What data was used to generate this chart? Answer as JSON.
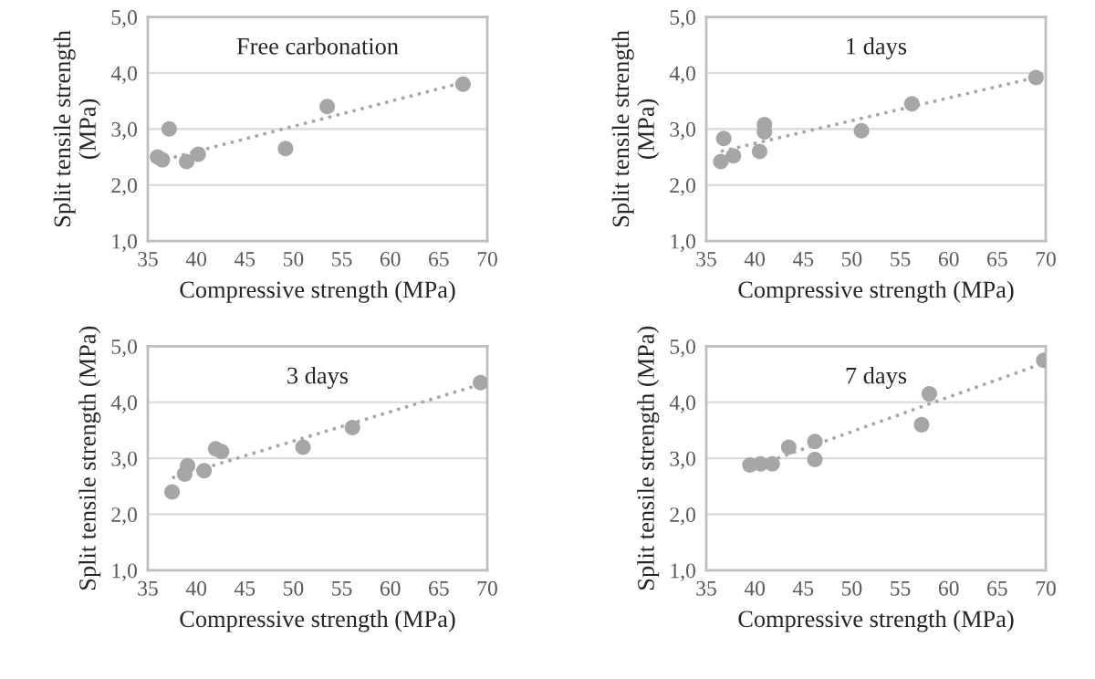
{
  "chart_data": [
    {
      "type": "scatter",
      "title": "Free carbonation",
      "xlabel": "Compressive strength (MPa)",
      "ylabel": "Split tensile strength (MPa)",
      "xlim": [
        35,
        70
      ],
      "ylim": [
        1,
        5
      ],
      "xticks": [
        35,
        40,
        45,
        50,
        55,
        60,
        65,
        70
      ],
      "yticks": [
        {
          "value": 1,
          "label": "1,0"
        },
        {
          "value": 2,
          "label": "2,0"
        },
        {
          "value": 3,
          "label": "3,0"
        },
        {
          "value": 4,
          "label": "4,0"
        },
        {
          "value": 5,
          "label": "5,0"
        }
      ],
      "grid": "y",
      "marker": "circle",
      "series": [
        {
          "color": "#a6a6a6",
          "x": [
            36,
            36.5,
            37.2,
            39,
            40.2,
            49.2,
            53.5,
            67.5
          ],
          "values": [
            2.5,
            2.45,
            3.0,
            2.42,
            2.55,
            2.65,
            3.4,
            3.8
          ]
        },
        {
          "type": "line",
          "marker": "none",
          "color": "#a6a6a6",
          "line_style": "dotted",
          "x": [
            36,
            67.5
          ],
          "values": [
            2.42,
            3.83
          ]
        }
      ]
    },
    {
      "type": "scatter",
      "title": "1 days",
      "xlabel": "Compressive strength (MPa)",
      "ylabel": "Split tensile strength (MPa)",
      "xlim": [
        35,
        70
      ],
      "ylim": [
        1,
        5
      ],
      "xticks": [
        35,
        40,
        45,
        50,
        55,
        60,
        65,
        70
      ],
      "yticks": [
        {
          "value": 1,
          "label": "1,0"
        },
        {
          "value": 2,
          "label": "2,0"
        },
        {
          "value": 3,
          "label": "3,0"
        },
        {
          "value": 4,
          "label": "4,0"
        },
        {
          "value": 5,
          "label": "5,0"
        }
      ],
      "grid": "y",
      "marker": "circle",
      "series": [
        {
          "color": "#a6a6a6",
          "x": [
            36.5,
            36.8,
            37.8,
            40.5,
            41,
            41,
            51,
            56.2,
            69
          ],
          "values": [
            2.42,
            2.83,
            2.52,
            2.6,
            3.08,
            2.95,
            2.97,
            3.45,
            3.92
          ]
        },
        {
          "type": "line",
          "marker": "none",
          "color": "#a6a6a6",
          "line_style": "dotted",
          "x": [
            36.5,
            69
          ],
          "values": [
            2.6,
            3.92
          ]
        }
      ]
    },
    {
      "type": "scatter",
      "title": "3 days",
      "xlabel": "Compressive strength (MPa)",
      "ylabel": "Split tensile strength (MPa)",
      "xlim": [
        35,
        70
      ],
      "ylim": [
        1,
        5
      ],
      "xticks": [
        35,
        40,
        45,
        50,
        55,
        60,
        65,
        70
      ],
      "yticks": [
        {
          "value": 1,
          "label": "1,0"
        },
        {
          "value": 2,
          "label": "2,0"
        },
        {
          "value": 3,
          "label": "3,0"
        },
        {
          "value": 4,
          "label": "4,0"
        },
        {
          "value": 5,
          "label": "5,0"
        }
      ],
      "grid": "y",
      "marker": "circle",
      "series": [
        {
          "color": "#a6a6a6",
          "x": [
            37.5,
            38.8,
            39.1,
            40.8,
            42,
            42.6,
            51,
            56.1,
            69.3
          ],
          "values": [
            2.4,
            2.72,
            2.87,
            2.78,
            3.17,
            3.12,
            3.2,
            3.55,
            4.35
          ]
        },
        {
          "type": "line",
          "marker": "none",
          "color": "#a6a6a6",
          "line_style": "dotted",
          "x": [
            37.5,
            69.3
          ],
          "values": [
            2.65,
            4.32
          ]
        }
      ]
    },
    {
      "type": "scatter",
      "title": "7 days",
      "xlabel": "Compressive strength (MPa)",
      "ylabel": "Split tensile strength (MPa)",
      "xlim": [
        35,
        70
      ],
      "ylim": [
        1,
        5
      ],
      "xticks": [
        35,
        40,
        45,
        50,
        55,
        60,
        65,
        70
      ],
      "yticks": [
        {
          "value": 1,
          "label": "1,0"
        },
        {
          "value": 2,
          "label": "2,0"
        },
        {
          "value": 3,
          "label": "3,0"
        },
        {
          "value": 4,
          "label": "4,0"
        },
        {
          "value": 5,
          "label": "5,0"
        }
      ],
      "grid": "y",
      "marker": "circle",
      "series": [
        {
          "color": "#a6a6a6",
          "x": [
            39.5,
            40.6,
            41.8,
            43.5,
            46.2,
            46.2,
            57.2,
            58,
            69.8
          ],
          "values": [
            2.88,
            2.9,
            2.9,
            3.2,
            3.3,
            2.98,
            3.6,
            4.15,
            4.75
          ]
        },
        {
          "type": "line",
          "marker": "none",
          "color": "#a6a6a6",
          "line_style": "dotted",
          "x": [
            41.5,
            69.8
          ],
          "values": [
            2.95,
            4.7
          ]
        }
      ]
    }
  ]
}
